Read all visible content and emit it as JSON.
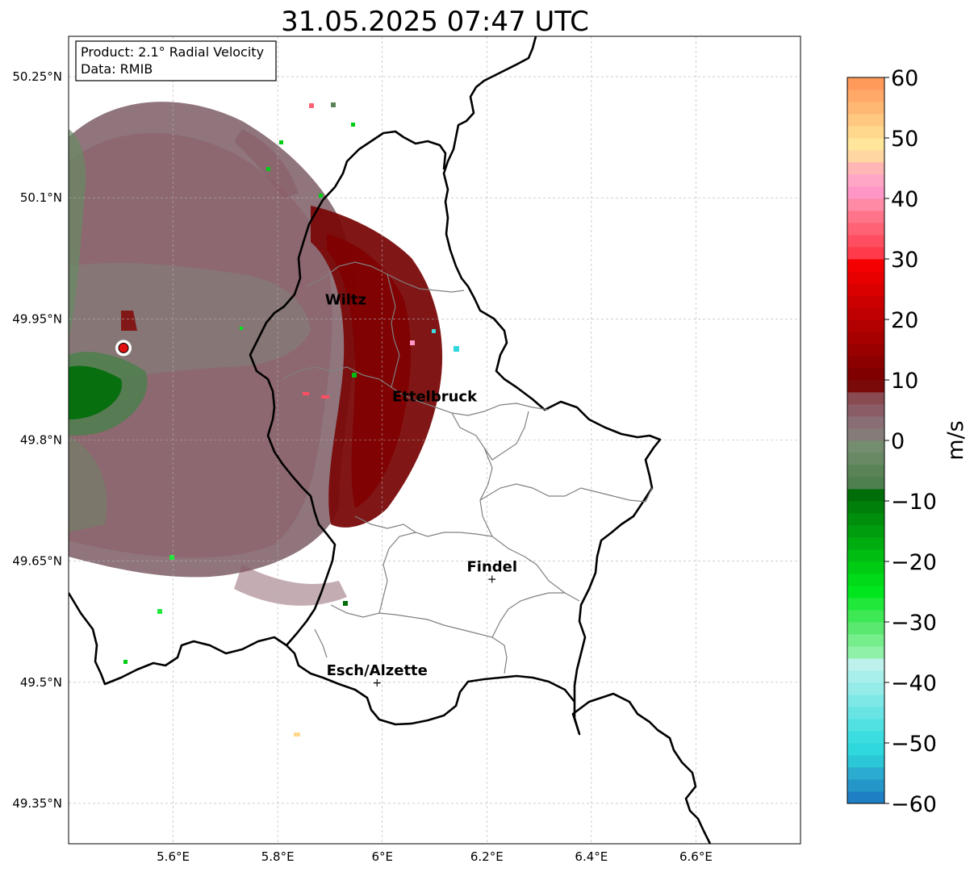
{
  "title": "31.05.2025 07:47 UTC",
  "info_box": {
    "product": "Product: 2.1° Radial Velocity",
    "data": "Data: RMIB"
  },
  "map": {
    "lon_range": [
      5.4,
      6.8
    ],
    "lat_range": [
      49.3,
      50.3
    ],
    "lon_ticks": [
      {
        "value": 5.6,
        "label": "5.6°E"
      },
      {
        "value": 5.8,
        "label": "5.8°E"
      },
      {
        "value": 6.0,
        "label": "6°E"
      },
      {
        "value": 6.2,
        "label": "6.2°E"
      },
      {
        "value": 6.4,
        "label": "6.4°E"
      },
      {
        "value": 6.6,
        "label": "6.6°E"
      }
    ],
    "lat_ticks": [
      {
        "value": 50.25,
        "label": "50.25°N"
      },
      {
        "value": 50.1,
        "label": "50.1°N"
      },
      {
        "value": 49.95,
        "label": "49.95°N"
      },
      {
        "value": 49.8,
        "label": "49.8°N"
      },
      {
        "value": 49.65,
        "label": "49.65°N"
      },
      {
        "value": 49.5,
        "label": "49.5°N"
      },
      {
        "value": 49.35,
        "label": "49.35°N"
      }
    ],
    "cities": [
      {
        "name": "Wiltz",
        "lon": 5.93,
        "lat": 49.968,
        "marker": false
      },
      {
        "name": "Ettelbruck",
        "lon": 6.1,
        "lat": 49.848,
        "marker": false
      },
      {
        "name": "Findel",
        "lon": 6.21,
        "lat": 49.628,
        "marker": true
      },
      {
        "name": "Esch/Alzette",
        "lon": 5.99,
        "lat": 49.5,
        "marker": true
      }
    ],
    "radar_site": {
      "lon": 5.505,
      "lat": 49.914
    }
  },
  "colorbar": {
    "label": "m/s",
    "vmin": -60,
    "vmax": 60,
    "ticks": [
      {
        "value": 60,
        "label": "60"
      },
      {
        "value": 50,
        "label": "50"
      },
      {
        "value": 40,
        "label": "40"
      },
      {
        "value": 30,
        "label": "30"
      },
      {
        "value": 20,
        "label": "20"
      },
      {
        "value": 10,
        "label": "10"
      },
      {
        "value": 0,
        "label": "0"
      },
      {
        "value": -10,
        "label": "−10"
      },
      {
        "value": -20,
        "label": "−20"
      },
      {
        "value": -30,
        "label": "−30"
      },
      {
        "value": -40,
        "label": "−40"
      },
      {
        "value": -50,
        "label": "−50"
      },
      {
        "value": -60,
        "label": "−60"
      }
    ],
    "stops": [
      {
        "from": -60,
        "to": -58,
        "color": "#1f7fc4"
      },
      {
        "from": -58,
        "to": -56,
        "color": "#2596c8"
      },
      {
        "from": -56,
        "to": -54,
        "color": "#2aabcf"
      },
      {
        "from": -54,
        "to": -52,
        "color": "#2cc7d6"
      },
      {
        "from": -52,
        "to": -50,
        "color": "#2ed8dc"
      },
      {
        "from": -50,
        "to": -48,
        "color": "#3cdde0"
      },
      {
        "from": -48,
        "to": -46,
        "color": "#52e1e2"
      },
      {
        "from": -46,
        "to": -44,
        "color": "#68e4e4"
      },
      {
        "from": -44,
        "to": -42,
        "color": "#7ee8e6"
      },
      {
        "from": -42,
        "to": -40,
        "color": "#94ebe8"
      },
      {
        "from": -40,
        "to": -38,
        "color": "#a8eeea"
      },
      {
        "from": -38,
        "to": -36,
        "color": "#bdf1ec"
      },
      {
        "from": -36,
        "to": -34,
        "color": "#8ff0a8"
      },
      {
        "from": -34,
        "to": -32,
        "color": "#76ee8c"
      },
      {
        "from": -32,
        "to": -30,
        "color": "#5ae870"
      },
      {
        "from": -30,
        "to": -28,
        "color": "#3ee854"
      },
      {
        "from": -28,
        "to": -26,
        "color": "#1fe83a"
      },
      {
        "from": -26,
        "to": -24,
        "color": "#00e61e"
      },
      {
        "from": -24,
        "to": -22,
        "color": "#00da18"
      },
      {
        "from": -22,
        "to": -20,
        "color": "#00cc14"
      },
      {
        "from": -20,
        "to": -18,
        "color": "#00bd12"
      },
      {
        "from": -18,
        "to": -16,
        "color": "#00ad10"
      },
      {
        "from": -16,
        "to": -14,
        "color": "#009e0e"
      },
      {
        "from": -14,
        "to": -12,
        "color": "#008f0c"
      },
      {
        "from": -12,
        "to": -10,
        "color": "#007f0a"
      },
      {
        "from": -10,
        "to": -8,
        "color": "#006e08"
      },
      {
        "from": -8,
        "to": -6,
        "color": "#4e7f4e"
      },
      {
        "from": -6,
        "to": -4,
        "color": "#5a8358"
      },
      {
        "from": -4,
        "to": -2,
        "color": "#678a64"
      },
      {
        "from": -2,
        "to": 0,
        "color": "#748d6f"
      },
      {
        "from": 0,
        "to": 2,
        "color": "#857b78"
      },
      {
        "from": 2,
        "to": 4,
        "color": "#8a6e76"
      },
      {
        "from": 4,
        "to": 6,
        "color": "#8a5c66"
      },
      {
        "from": 6,
        "to": 8,
        "color": "#8a4a52"
      },
      {
        "from": 8,
        "to": 10,
        "color": "#7a0a0a"
      },
      {
        "from": 10,
        "to": 12,
        "color": "#800000"
      },
      {
        "from": 12,
        "to": 14,
        "color": "#8c0000"
      },
      {
        "from": 14,
        "to": 16,
        "color": "#990000"
      },
      {
        "from": 16,
        "to": 18,
        "color": "#a60000"
      },
      {
        "from": 18,
        "to": 20,
        "color": "#b30000"
      },
      {
        "from": 20,
        "to": 22,
        "color": "#c00000"
      },
      {
        "from": 22,
        "to": 24,
        "color": "#cc0000"
      },
      {
        "from": 24,
        "to": 26,
        "color": "#da0000"
      },
      {
        "from": 26,
        "to": 28,
        "color": "#e80000"
      },
      {
        "from": 28,
        "to": 30,
        "color": "#f50000"
      },
      {
        "from": 30,
        "to": 32,
        "color": "#ff3a4a"
      },
      {
        "from": 32,
        "to": 34,
        "color": "#ff4e60"
      },
      {
        "from": 34,
        "to": 36,
        "color": "#ff6274"
      },
      {
        "from": 36,
        "to": 38,
        "color": "#ff7488"
      },
      {
        "from": 38,
        "to": 40,
        "color": "#ff8aa6"
      },
      {
        "from": 40,
        "to": 42,
        "color": "#ff96c6"
      },
      {
        "from": 42,
        "to": 44,
        "color": "#ffa6c6"
      },
      {
        "from": 44,
        "to": 46,
        "color": "#ffb6b4"
      },
      {
        "from": 46,
        "to": 48,
        "color": "#ffd6a2"
      },
      {
        "from": 48,
        "to": 50,
        "color": "#ffe69a"
      },
      {
        "from": 50,
        "to": 52,
        "color": "#ffd88e"
      },
      {
        "from": 52,
        "to": 54,
        "color": "#ffc880"
      },
      {
        "from": 54,
        "to": 56,
        "color": "#ffb874"
      },
      {
        "from": 56,
        "to": 58,
        "color": "#ffa868"
      },
      {
        "from": 58,
        "to": 60,
        "color": "#ff9a5a"
      }
    ]
  }
}
